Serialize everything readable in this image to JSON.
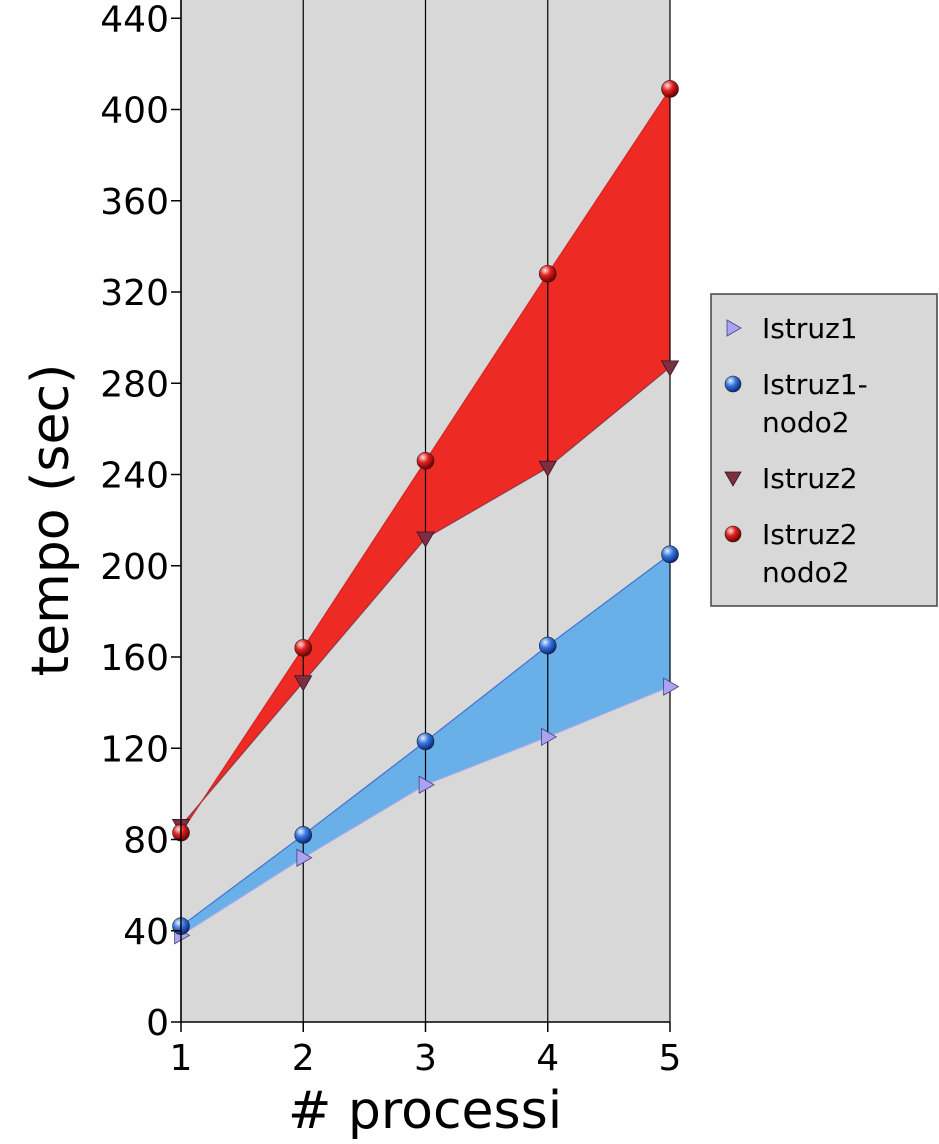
{
  "chart_data": {
    "type": "line",
    "title": "",
    "xlabel": "# processi",
    "ylabel": "tempo (sec)",
    "x": [
      1,
      2,
      3,
      4,
      5
    ],
    "xlim": [
      1,
      5
    ],
    "ylim": [
      0,
      448
    ],
    "y_ticks": [
      0,
      40,
      80,
      120,
      160,
      200,
      240,
      280,
      320,
      360,
      400,
      440
    ],
    "grid": "vertical lines at each x",
    "legend_position": "right",
    "series": [
      {
        "name": "Istruz1",
        "marker": "triangle-right",
        "color": "#a9a3f0",
        "values": [
          38,
          72,
          104,
          125,
          147
        ]
      },
      {
        "name": "Istruz1-\nnodo2",
        "marker": "sphere",
        "color": "#2b5fd0",
        "values": [
          42,
          82,
          123,
          165,
          205
        ]
      },
      {
        "name": "Istruz2",
        "marker": "triangle-down",
        "color": "#7a3040",
        "values": [
          86,
          149,
          212,
          243,
          287
        ]
      },
      {
        "name": "Istruz2\nnodo2",
        "marker": "sphere",
        "color": "#d01818",
        "values": [
          83,
          164,
          246,
          328,
          409
        ]
      }
    ],
    "bands": [
      {
        "between": [
          "Istruz1",
          "Istruz1-\nnodo2"
        ],
        "color": "#6ab0e8"
      },
      {
        "between": [
          "Istruz2",
          "Istruz2\nnodo2"
        ],
        "color": "#ee2a24"
      }
    ],
    "plot_background": "#d8d8d8"
  }
}
